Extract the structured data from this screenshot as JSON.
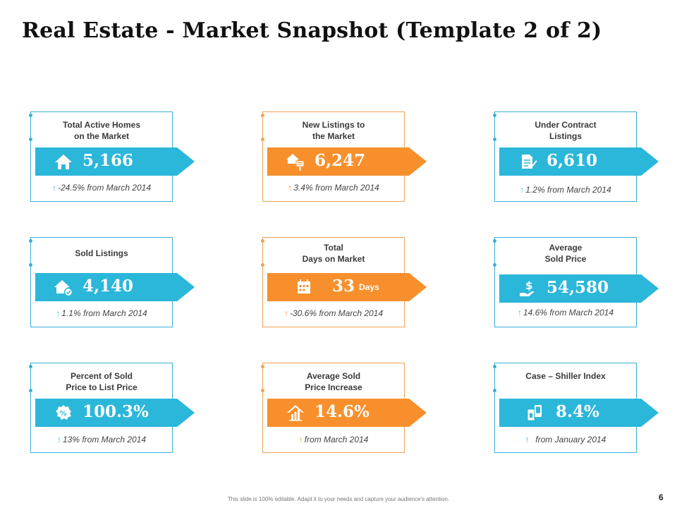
{
  "title": "Real Estate - Market Snapshot (Template 2 of 2)",
  "footer": "This slide is 100% editable. Adapt it to your needs and capture your audience's attention.",
  "page_number": "6",
  "colors": {
    "blue": "#2bb7da",
    "orange": "#f7902c",
    "blue_border": "#39b0d6",
    "orange_border": "#f2a257"
  },
  "arrow_glyph": "↑",
  "cards": [
    {
      "label": "Total Active Homes\non the Market",
      "value": "5,166",
      "unit": "",
      "change": "-24.5% from March 2014",
      "icon": "house-icon",
      "color": "blue"
    },
    {
      "label": "New Listings  to\nthe Market",
      "value": "6,247",
      "unit": "",
      "change": "3.4% from March 2014",
      "icon": "house-sign-icon",
      "color": "orange"
    },
    {
      "label": "Under Contract\nListings",
      "value": "6,610",
      "unit": "",
      "change": "1.2% from March 2014",
      "icon": "contract-icon",
      "color": "blue"
    },
    {
      "label": "Sold Listings",
      "value": "4,140",
      "unit": "",
      "change": "1.1% from March 2014",
      "icon": "house-check-icon",
      "color": "blue"
    },
    {
      "label": "Total\nDays on Market",
      "value": "33",
      "unit": "Days",
      "change": "-30.6% from March 2014",
      "icon": "calendar-icon",
      "color": "orange"
    },
    {
      "label": "Average\nSold Price",
      "value": "54,580",
      "unit": "",
      "change": "14.6% from March 2014",
      "icon": "dollar-hand-icon",
      "color": "blue"
    },
    {
      "label": "Percent of Sold\nPrice to List Price",
      "value": "100.3%",
      "unit": "",
      "change": "13% from March 2014",
      "icon": "percent-badge-icon",
      "color": "blue"
    },
    {
      "label": "Average Sold\nPrice Increase",
      "value": "14.6%",
      "unit": "",
      "change": "from March 2014",
      "icon": "house-chart-icon",
      "color": "orange"
    },
    {
      "label": "Case – Shiller Index",
      "value": "8.4%",
      "unit": "",
      "change": "  from January 2014",
      "icon": "phone-doc-icon",
      "color": "blue"
    }
  ]
}
